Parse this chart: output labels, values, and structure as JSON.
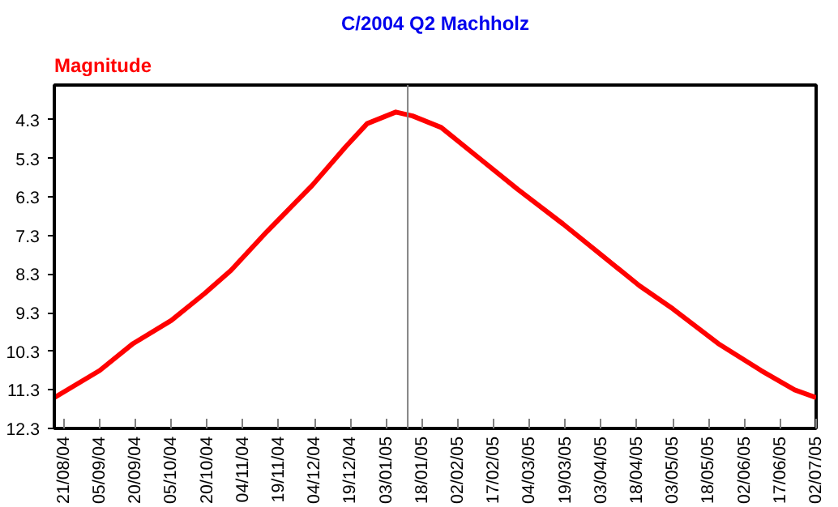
{
  "chart_data": {
    "type": "line",
    "title": "C/2004 Q2 Machholz",
    "ylabel": "Magnitude",
    "x": [
      "2004-08-17",
      "2004-09-05",
      "2004-09-19",
      "2004-10-05",
      "2004-10-19",
      "2004-10-30",
      "2004-11-14",
      "2004-12-03",
      "2004-12-17",
      "2004-12-26",
      "2005-01-07",
      "2005-01-14",
      "2005-01-26",
      "2005-02-11",
      "2005-02-27",
      "2005-03-18",
      "2005-04-03",
      "2005-04-19",
      "2005-05-03",
      "2005-05-22",
      "2005-06-09",
      "2005-06-23",
      "2005-07-02"
    ],
    "series": [
      {
        "color": "#ff0000",
        "values": [
          11.5,
          10.8,
          10.1,
          9.5,
          8.8,
          8.2,
          7.2,
          6.0,
          5.0,
          4.4,
          4.1,
          4.2,
          4.5,
          5.3,
          6.1,
          7.0,
          7.8,
          8.6,
          9.2,
          10.1,
          10.8,
          11.3,
          11.5
        ]
      }
    ],
    "xlim": [
      "2004-08-17",
      "2005-07-02"
    ],
    "xticks": [
      {
        "value": "2004-08-21",
        "label": "21/08/04"
      },
      {
        "value": "2004-09-05",
        "label": "05/09/04"
      },
      {
        "value": "2004-09-20",
        "label": "20/09/04"
      },
      {
        "value": "2004-10-05",
        "label": "05/10/04"
      },
      {
        "value": "2004-10-20",
        "label": "20/10/04"
      },
      {
        "value": "2004-11-04",
        "label": "04/11/04"
      },
      {
        "value": "2004-11-19",
        "label": "19/11/04"
      },
      {
        "value": "2004-12-04",
        "label": "04/12/04"
      },
      {
        "value": "2004-12-19",
        "label": "19/12/04"
      },
      {
        "value": "2005-01-03",
        "label": "03/01/05"
      },
      {
        "value": "2005-01-18",
        "label": "18/01/05"
      },
      {
        "value": "2005-02-02",
        "label": "02/02/05"
      },
      {
        "value": "2005-02-17",
        "label": "17/02/05"
      },
      {
        "value": "2005-03-04",
        "label": "04/03/05"
      },
      {
        "value": "2005-03-19",
        "label": "19/03/05"
      },
      {
        "value": "2005-04-03",
        "label": "03/04/05"
      },
      {
        "value": "2005-04-18",
        "label": "18/04/05"
      },
      {
        "value": "2005-05-03",
        "label": "03/05/05"
      },
      {
        "value": "2005-05-18",
        "label": "18/05/05"
      },
      {
        "value": "2005-06-02",
        "label": "02/06/05"
      },
      {
        "value": "2005-06-17",
        "label": "17/06/05"
      },
      {
        "value": "2005-07-02",
        "label": "02/07/05"
      }
    ],
    "ylim": [
      12.3,
      3.4
    ],
    "yticks": [
      {
        "value": 4.3,
        "label": "4.3"
      },
      {
        "value": 5.3,
        "label": "5.3"
      },
      {
        "value": 6.3,
        "label": "6.3"
      },
      {
        "value": 7.3,
        "label": "7.3"
      },
      {
        "value": 8.3,
        "label": "8.3"
      },
      {
        "value": 9.3,
        "label": "9.3"
      },
      {
        "value": 10.3,
        "label": "10.3"
      },
      {
        "value": 11.3,
        "label": "11.3"
      },
      {
        "value": 12.3,
        "label": "12.3"
      }
    ],
    "ref_lines": [
      {
        "axis": "x",
        "value": "2005-01-12",
        "color": "#808080"
      }
    ],
    "grid": false,
    "marker": "none",
    "line_style": "solid"
  }
}
